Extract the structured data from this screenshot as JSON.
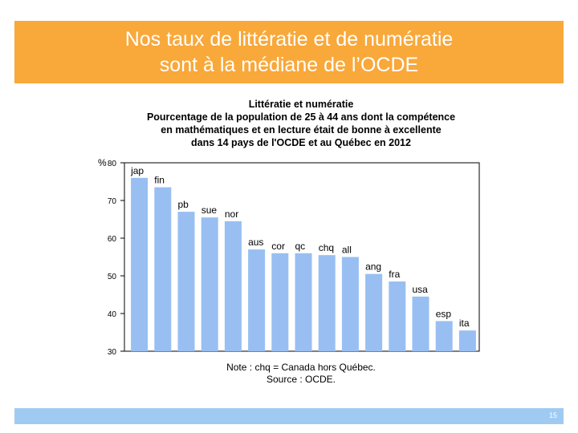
{
  "slide": {
    "title_lines": [
      "Nos taux de littératie et de numératie",
      "sont à la médiane de l’OCDE"
    ],
    "page_number": "15",
    "colors": {
      "banner": "#f9a83a",
      "footer": "#9fcbf3",
      "bars": "#99bff2"
    }
  },
  "chart_data": {
    "type": "bar",
    "title_lines": [
      "Littératie et numératie",
      "Pourcentage de la population de 25 à 44 ans dont la compétence",
      "en mathématiques et en lecture était de bonne à excellente",
      "dans 14 pays de l'OCDE et au Québec en 2012"
    ],
    "ylabel": "%",
    "ylim": [
      30,
      80
    ],
    "yticks": [
      30,
      40,
      50,
      60,
      70,
      80
    ],
    "categories": [
      "jap",
      "fin",
      "pb",
      "sue",
      "nor",
      "aus",
      "cor",
      "qc",
      "chq",
      "all",
      "ang",
      "fra",
      "usa",
      "esp",
      "ita"
    ],
    "values": [
      76,
      73.5,
      67,
      65.5,
      64.5,
      57,
      56,
      56,
      55.5,
      55,
      50.5,
      48.5,
      44.5,
      38,
      35.5
    ],
    "grid": false,
    "legend": "none",
    "notes": [
      "Note : chq = Canada hors Québec.",
      "Source : OCDE."
    ]
  }
}
